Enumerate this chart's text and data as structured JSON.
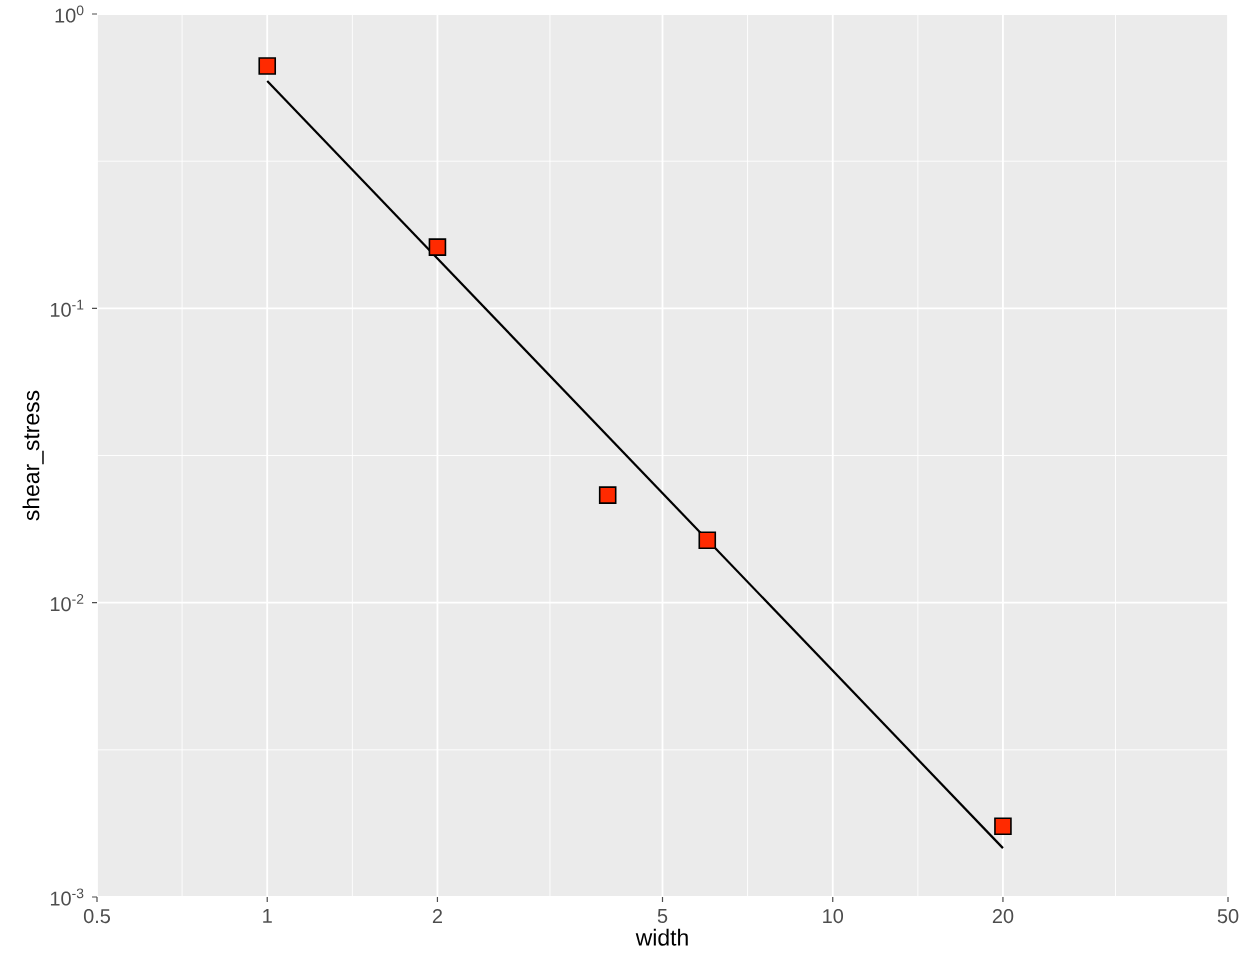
{
  "chart_data": {
    "type": "scatter",
    "xlabel": "width",
    "ylabel": "shear_stress",
    "log": "xy",
    "grid": true,
    "xlim": [
      0.5,
      50
    ],
    "ylim": [
      0.001,
      1
    ],
    "xticks": [
      0.5,
      1,
      2,
      5,
      10,
      20,
      50
    ],
    "yticks": [
      {
        "value": 0.001,
        "label": "10$^{-3}$"
      },
      {
        "value": 0.01,
        "label": "10$^{-2}$"
      },
      {
        "value": 0.1,
        "label": "10$^{-1}$"
      },
      {
        "value": 1,
        "label": "10$^{0}$"
      }
    ],
    "series": [
      {
        "marker": "square",
        "color": "#ff2a00",
        "x": [
          1,
          2,
          4,
          6,
          20
        ],
        "values": [
          0.666,
          0.1615,
          0.0232,
          0.0163,
          0.00174
        ]
      },
      {
        "type": "line",
        "marker": "none",
        "line_style": "solid",
        "color": "#000000",
        "x": [
          1,
          20
        ],
        "values": [
          0.592,
          0.001466
        ]
      }
    ]
  }
}
